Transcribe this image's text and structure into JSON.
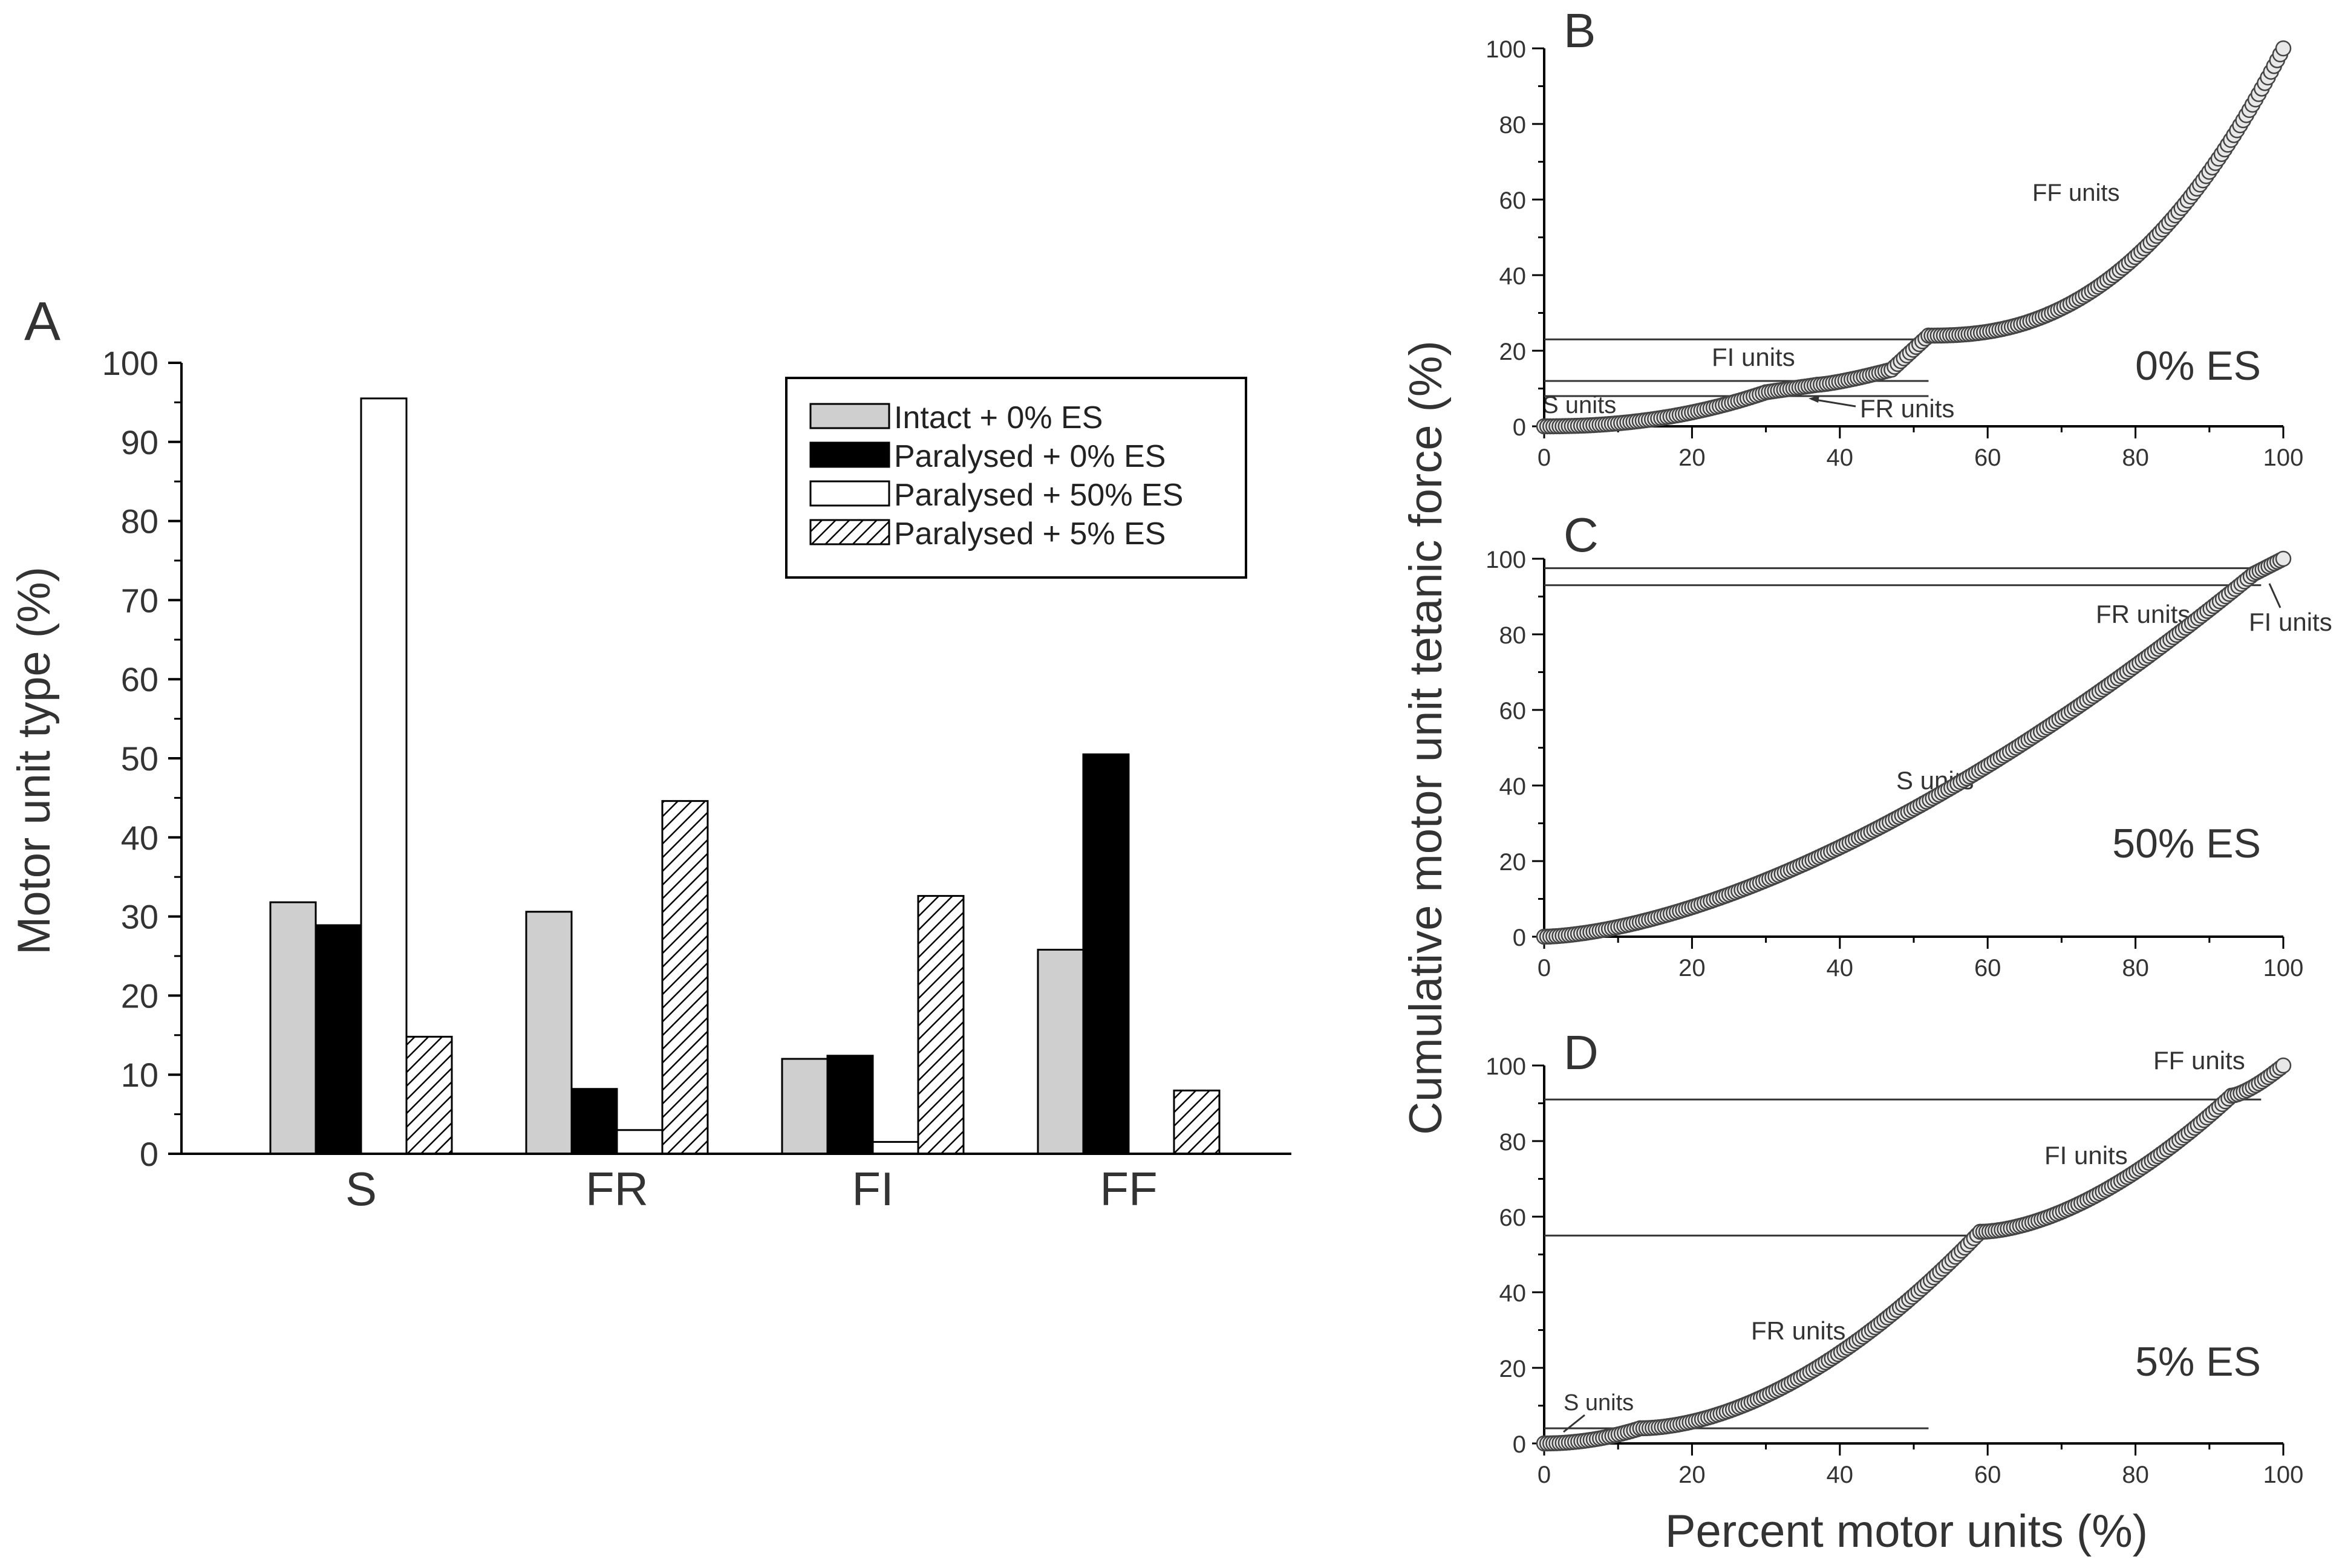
{
  "chart_data": [
    {
      "panel": "A",
      "type": "bar",
      "ylabel": "Motor unit type (%)",
      "ylim": [
        0,
        100
      ],
      "yticks": [
        "0",
        "10",
        "20",
        "30",
        "40",
        "50",
        "60",
        "70",
        "80",
        "90",
        "100"
      ],
      "categories": [
        "S",
        "FR",
        "FI",
        "FF"
      ],
      "legend_position": "top-right",
      "series": [
        {
          "name": "Intact + 0% ES",
          "fill": "#cfcfcf",
          "pattern": "solid",
          "values": [
            31.8,
            30.6,
            12.0,
            25.8
          ]
        },
        {
          "name": "Paralysed + 0% ES",
          "fill": "#000000",
          "pattern": "solid",
          "values": [
            28.9,
            8.2,
            12.4,
            50.5
          ]
        },
        {
          "name": "Paralysed + 50% ES",
          "fill": "#ffffff",
          "pattern": "solid",
          "values": [
            95.5,
            3.0,
            1.5,
            0
          ]
        },
        {
          "name": "Paralysed + 5% ES",
          "fill": "#ffffff",
          "pattern": "hatch",
          "values": [
            14.8,
            44.6,
            32.6,
            8.0
          ]
        }
      ]
    },
    {
      "panel": "B",
      "type": "scatter",
      "panel_label": "0% ES",
      "xlim": [
        0,
        100
      ],
      "ylim": [
        0,
        100
      ],
      "xticks": [
        "0",
        "20",
        "40",
        "60",
        "80",
        "100"
      ],
      "yticks": [
        "0",
        "20",
        "40",
        "60",
        "80",
        "100"
      ],
      "hlines": [
        8,
        12,
        23
      ],
      "annotations": [
        "S units",
        "FI units",
        "FR units",
        "FF units"
      ],
      "segments": [
        {
          "x0": 0,
          "x1": 30,
          "y0": 0,
          "y1": 9,
          "exp": 2.2
        },
        {
          "x0": 30,
          "x1": 37,
          "y0": 9,
          "y1": 11,
          "exp": 1
        },
        {
          "x0": 37,
          "x1": 47,
          "y0": 11,
          "y1": 15,
          "exp": 1.3
        },
        {
          "x0": 47,
          "x1": 52,
          "y0": 15,
          "y1": 24,
          "exp": 1
        },
        {
          "x0": 52,
          "x1": 100,
          "y0": 24,
          "y1": 100,
          "exp": 2.4
        }
      ]
    },
    {
      "panel": "C",
      "type": "scatter",
      "panel_label": "50% ES",
      "xlim": [
        0,
        100
      ],
      "ylim": [
        0,
        100
      ],
      "xticks": [
        "0",
        "20",
        "40",
        "60",
        "80",
        "100"
      ],
      "yticks": [
        "0",
        "20",
        "40",
        "60",
        "80",
        "100"
      ],
      "hlines": [
        93,
        97.5
      ],
      "annotations": [
        "S units",
        "FR units",
        "FI units"
      ],
      "segments": [
        {
          "x0": 0,
          "x1": 96,
          "y0": 0,
          "y1": 96,
          "exp": 1.6
        },
        {
          "x0": 96,
          "x1": 100,
          "y0": 96,
          "y1": 100,
          "exp": 1
        }
      ]
    },
    {
      "panel": "D",
      "type": "scatter",
      "panel_label": "5% ES",
      "xlabel": "Percent motor units (%)",
      "xlim": [
        0,
        100
      ],
      "ylim": [
        0,
        100
      ],
      "xticks": [
        "0",
        "20",
        "40",
        "60",
        "80",
        "100"
      ],
      "yticks": [
        "0",
        "20",
        "40",
        "60",
        "80",
        "100"
      ],
      "hlines": [
        4,
        55,
        91
      ],
      "annotations": [
        "S units",
        "FR units",
        "FI units",
        "FF units"
      ],
      "segments": [
        {
          "x0": 0,
          "x1": 13,
          "y0": 0,
          "y1": 4,
          "exp": 2
        },
        {
          "x0": 13,
          "x1": 59,
          "y0": 4,
          "y1": 56,
          "exp": 1.8
        },
        {
          "x0": 59,
          "x1": 93,
          "y0": 56,
          "y1": 92,
          "exp": 1.7
        },
        {
          "x0": 93,
          "x1": 100,
          "y0": 92,
          "y1": 100,
          "exp": 1.4
        }
      ]
    }
  ],
  "labels": {
    "panel_a": "A",
    "panel_b": "B",
    "panel_c": "C",
    "panel_d": "D",
    "shared_ylabel": "Cumulative motor unit tetanic force (%)",
    "legend": [
      "Intact + 0% ES",
      "Paralysed + 0% ES",
      "Paralysed + 50% ES",
      "Paralysed + 5% ES"
    ]
  }
}
